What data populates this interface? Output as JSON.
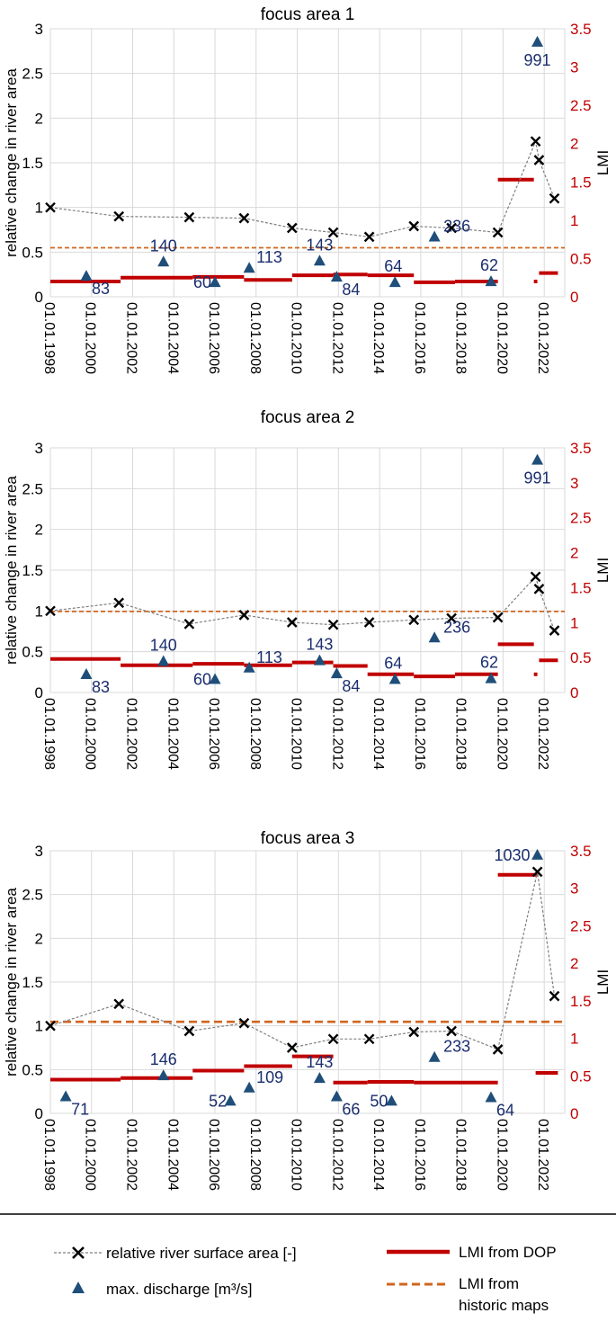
{
  "colors": {
    "relative_area": "#000000",
    "relative_area_line": "#7f7f7f",
    "discharge": "#1f4e79",
    "discharge_label": "#1a2e6e",
    "lmi_dop": "#c00000",
    "lmi_historic": "#d0651e",
    "gridline": "#d9d9d9",
    "right_axis": "#c00000"
  },
  "chart_data": [
    {
      "type": "line",
      "title": "focus area 1",
      "ylabel": "relative change in river area",
      "ylabel_right": "LMI",
      "ylim": [
        0,
        3
      ],
      "ylim_right": [
        0,
        3.5
      ],
      "yticks": [
        "0",
        "0.5",
        "1",
        "1.5",
        "2",
        "2.5",
        "3"
      ],
      "yticks_right": [
        "0",
        "0.5",
        "1",
        "1.5",
        "2",
        "2.5",
        "3",
        "3.5"
      ],
      "xlim": [
        "1998-01-01",
        "2022-12-31"
      ],
      "xticks": [
        "01.01.1998",
        "01.01.2000",
        "01.01.2002",
        "01.01.2004",
        "01.01.2006",
        "01.01.2008",
        "01.01.2010",
        "01.01.2012",
        "01.01.2014",
        "01.01.2016",
        "01.01.2018",
        "01.01.2020",
        "01.01.2022"
      ],
      "grid": true,
      "relative_area": [
        {
          "x": "1998-01-01",
          "y": 1.0
        },
        {
          "x": "2001-05-01",
          "y": 0.9
        },
        {
          "x": "2004-10-01",
          "y": 0.89
        },
        {
          "x": "2007-06-01",
          "y": 0.88
        },
        {
          "x": "2009-10-01",
          "y": 0.77
        },
        {
          "x": "2011-10-01",
          "y": 0.72
        },
        {
          "x": "2013-07-01",
          "y": 0.67
        },
        {
          "x": "2015-09-01",
          "y": 0.79
        },
        {
          "x": "2017-07-01",
          "y": 0.77
        },
        {
          "x": "2019-10-01",
          "y": 0.72
        },
        {
          "x": "2021-08-01",
          "y": 1.74
        },
        {
          "x": "2021-10-01",
          "y": 1.53
        },
        {
          "x": "2022-07-01",
          "y": 1.1
        }
      ],
      "discharge": [
        {
          "x": "1999-10-01",
          "y": 0.23,
          "label": "83"
        },
        {
          "x": "2003-07-01",
          "y": 0.39,
          "label": "140"
        },
        {
          "x": "2006-01-01",
          "y": 0.16,
          "label": "60"
        },
        {
          "x": "2007-09-01",
          "y": 0.32,
          "label": "113"
        },
        {
          "x": "2011-02-01",
          "y": 0.4,
          "label": "143"
        },
        {
          "x": "2011-12-01",
          "y": 0.22,
          "label": "84"
        },
        {
          "x": "2014-10-01",
          "y": 0.16,
          "label": "64"
        },
        {
          "x": "2016-09-01",
          "y": 0.67,
          "label": "236"
        },
        {
          "x": "2019-06-01",
          "y": 0.17,
          "label": "62"
        },
        {
          "x": "2021-09-01",
          "y": 2.85,
          "label": "991"
        }
      ],
      "lmi_dop": [
        {
          "x0": "1998-01-01",
          "x1": "2001-06-01",
          "y": 0.2
        },
        {
          "x0": "2001-06-01",
          "x1": "2004-12-01",
          "y": 0.25
        },
        {
          "x0": "2004-12-01",
          "x1": "2007-06-01",
          "y": 0.26
        },
        {
          "x0": "2007-06-01",
          "x1": "2009-10-01",
          "y": 0.22
        },
        {
          "x0": "2009-10-01",
          "x1": "2011-10-01",
          "y": 0.28
        },
        {
          "x0": "2011-10-01",
          "x1": "2013-06-01",
          "y": 0.29
        },
        {
          "x0": "2013-06-01",
          "x1": "2015-09-01",
          "y": 0.28
        },
        {
          "x0": "2015-09-01",
          "x1": "2017-09-01",
          "y": 0.19
        },
        {
          "x0": "2017-09-01",
          "x1": "2019-10-01",
          "y": 0.2
        },
        {
          "x0": "2019-10-01",
          "x1": "2021-07-01",
          "y": 1.53
        },
        {
          "x0": "2021-07-01",
          "x1": "2021-09-01",
          "y": 0.2
        },
        {
          "x0": "2021-10-01",
          "x1": "2022-09-01",
          "y": 0.31
        }
      ],
      "lmi_historic": 0.64
    },
    {
      "type": "line",
      "title": "focus area 2",
      "ylabel": "relative change in river area",
      "ylabel_right": "LMI",
      "ylim": [
        0,
        3
      ],
      "ylim_right": [
        0,
        3.5
      ],
      "yticks": [
        "0",
        "0.5",
        "1",
        "1.5",
        "2",
        "2.5",
        "3"
      ],
      "yticks_right": [
        "0",
        "0.5",
        "1",
        "1.5",
        "2",
        "2.5",
        "3",
        "3.5"
      ],
      "xlim": [
        "1998-01-01",
        "2022-12-31"
      ],
      "xticks": [
        "01.01.1998",
        "01.01.2000",
        "01.01.2002",
        "01.01.2004",
        "01.01.2006",
        "01.01.2008",
        "01.01.2010",
        "01.01.2012",
        "01.01.2014",
        "01.01.2016",
        "01.01.2018",
        "01.01.2020",
        "01.01.2022"
      ],
      "grid": true,
      "relative_area": [
        {
          "x": "1998-01-01",
          "y": 1.0
        },
        {
          "x": "2001-05-01",
          "y": 1.1
        },
        {
          "x": "2004-10-01",
          "y": 0.84
        },
        {
          "x": "2007-06-01",
          "y": 0.95
        },
        {
          "x": "2009-10-01",
          "y": 0.86
        },
        {
          "x": "2011-10-01",
          "y": 0.83
        },
        {
          "x": "2013-07-01",
          "y": 0.86
        },
        {
          "x": "2015-09-01",
          "y": 0.89
        },
        {
          "x": "2017-07-01",
          "y": 0.91
        },
        {
          "x": "2019-10-01",
          "y": 0.92
        },
        {
          "x": "2021-08-01",
          "y": 1.42
        },
        {
          "x": "2021-10-01",
          "y": 1.27
        },
        {
          "x": "2022-07-01",
          "y": 0.76
        }
      ],
      "discharge": [
        {
          "x": "1999-10-01",
          "y": 0.22,
          "label": "83"
        },
        {
          "x": "2003-07-01",
          "y": 0.38,
          "label": "140"
        },
        {
          "x": "2006-01-01",
          "y": 0.16,
          "label": "60"
        },
        {
          "x": "2007-09-01",
          "y": 0.3,
          "label": "113"
        },
        {
          "x": "2011-02-01",
          "y": 0.39,
          "label": "143"
        },
        {
          "x": "2011-12-01",
          "y": 0.23,
          "label": "84"
        },
        {
          "x": "2014-10-01",
          "y": 0.16,
          "label": "64"
        },
        {
          "x": "2016-09-01",
          "y": 0.67,
          "label": "236"
        },
        {
          "x": "2019-06-01",
          "y": 0.17,
          "label": "62"
        },
        {
          "x": "2021-09-01",
          "y": 2.85,
          "label": "991"
        }
      ],
      "lmi_dop": [
        {
          "x0": "1998-01-01",
          "x1": "2001-06-01",
          "y": 0.48
        },
        {
          "x0": "2001-06-01",
          "x1": "2004-12-01",
          "y": 0.39
        },
        {
          "x0": "2004-12-01",
          "x1": "2007-06-01",
          "y": 0.41
        },
        {
          "x0": "2007-06-01",
          "x1": "2009-10-01",
          "y": 0.39
        },
        {
          "x0": "2009-10-01",
          "x1": "2011-10-01",
          "y": 0.43
        },
        {
          "x0": "2011-10-01",
          "x1": "2013-06-01",
          "y": 0.38
        },
        {
          "x0": "2013-06-01",
          "x1": "2015-09-01",
          "y": 0.26
        },
        {
          "x0": "2015-09-01",
          "x1": "2017-09-01",
          "y": 0.23
        },
        {
          "x0": "2017-09-01",
          "x1": "2019-10-01",
          "y": 0.26
        },
        {
          "x0": "2019-10-01",
          "x1": "2021-07-01",
          "y": 0.69
        },
        {
          "x0": "2021-07-01",
          "x1": "2021-09-01",
          "y": 0.26
        },
        {
          "x0": "2021-10-01",
          "x1": "2022-09-01",
          "y": 0.46
        }
      ],
      "lmi_historic": 1.16
    },
    {
      "type": "line",
      "title": "focus area 3",
      "ylabel": "relative change in river area",
      "ylabel_right": "LMI",
      "ylim": [
        0,
        3
      ],
      "ylim_right": [
        0,
        3.5
      ],
      "yticks": [
        "0",
        "0.5",
        "1",
        "1.5",
        "2",
        "2.5",
        "3"
      ],
      "yticks_right": [
        "0",
        "0.5",
        "1",
        "1.5",
        "2",
        "2.5",
        "3",
        "3.5"
      ],
      "xlim": [
        "1998-01-01",
        "2022-12-31"
      ],
      "xticks": [
        "01.01.1998",
        "01.01.2000",
        "01.01.2002",
        "01.01.2004",
        "01.01.2006",
        "01.01.2008",
        "01.01.2010",
        "01.01.2012",
        "01.01.2014",
        "01.01.2016",
        "01.01.2018",
        "01.01.2020",
        "01.01.2022"
      ],
      "grid": true,
      "relative_area": [
        {
          "x": "1998-01-01",
          "y": 1.0
        },
        {
          "x": "2001-05-01",
          "y": 1.25
        },
        {
          "x": "2004-10-01",
          "y": 0.94
        },
        {
          "x": "2007-06-01",
          "y": 1.03
        },
        {
          "x": "2009-10-01",
          "y": 0.75
        },
        {
          "x": "2011-10-01",
          "y": 0.85
        },
        {
          "x": "2013-07-01",
          "y": 0.85
        },
        {
          "x": "2015-09-01",
          "y": 0.93
        },
        {
          "x": "2017-07-01",
          "y": 0.94
        },
        {
          "x": "2019-10-01",
          "y": 0.73
        },
        {
          "x": "2021-09-01",
          "y": 2.76
        },
        {
          "x": "2022-07-01",
          "y": 1.34
        }
      ],
      "discharge": [
        {
          "x": "1998-10-01",
          "y": 0.19,
          "label": "71"
        },
        {
          "x": "2003-07-01",
          "y": 0.43,
          "label": "146"
        },
        {
          "x": "2006-10-01",
          "y": 0.14,
          "label": "52"
        },
        {
          "x": "2007-09-01",
          "y": 0.29,
          "label": "109"
        },
        {
          "x": "2011-02-01",
          "y": 0.4,
          "label": "143"
        },
        {
          "x": "2011-12-01",
          "y": 0.19,
          "label": "66"
        },
        {
          "x": "2014-08-01",
          "y": 0.14,
          "label": "50"
        },
        {
          "x": "2016-09-01",
          "y": 0.64,
          "label": "233"
        },
        {
          "x": "2019-06-01",
          "y": 0.18,
          "label": "64"
        },
        {
          "x": "2021-09-01",
          "y": 2.95,
          "label": "1030"
        }
      ],
      "lmi_dop": [
        {
          "x0": "1998-01-01",
          "x1": "2001-06-01",
          "y": 0.45
        },
        {
          "x0": "2001-06-01",
          "x1": "2004-12-01",
          "y": 0.47
        },
        {
          "x0": "2004-12-01",
          "x1": "2007-06-01",
          "y": 0.57
        },
        {
          "x0": "2007-06-01",
          "x1": "2009-10-01",
          "y": 0.63
        },
        {
          "x0": "2009-10-01",
          "x1": "2011-10-01",
          "y": 0.76
        },
        {
          "x0": "2011-10-01",
          "x1": "2013-06-01",
          "y": 0.41
        },
        {
          "x0": "2013-06-01",
          "x1": "2015-09-01",
          "y": 0.42
        },
        {
          "x0": "2015-09-01",
          "x1": "2017-09-01",
          "y": 0.41
        },
        {
          "x0": "2017-09-01",
          "x1": "2019-10-01",
          "y": 0.41
        },
        {
          "x0": "2019-10-01",
          "x1": "2021-09-01",
          "y": 3.18
        },
        {
          "x0": "2021-08-01",
          "x1": "2022-09-01",
          "y": 0.54
        }
      ],
      "lmi_historic": 1.22
    }
  ],
  "legend": {
    "relative_area": "relative river surface area [-]",
    "discharge": "max. discharge [m³/s]",
    "lmi_dop": "LMI from DOP",
    "lmi_historic_line1": "LMI from",
    "lmi_historic_line2": "historic maps"
  }
}
